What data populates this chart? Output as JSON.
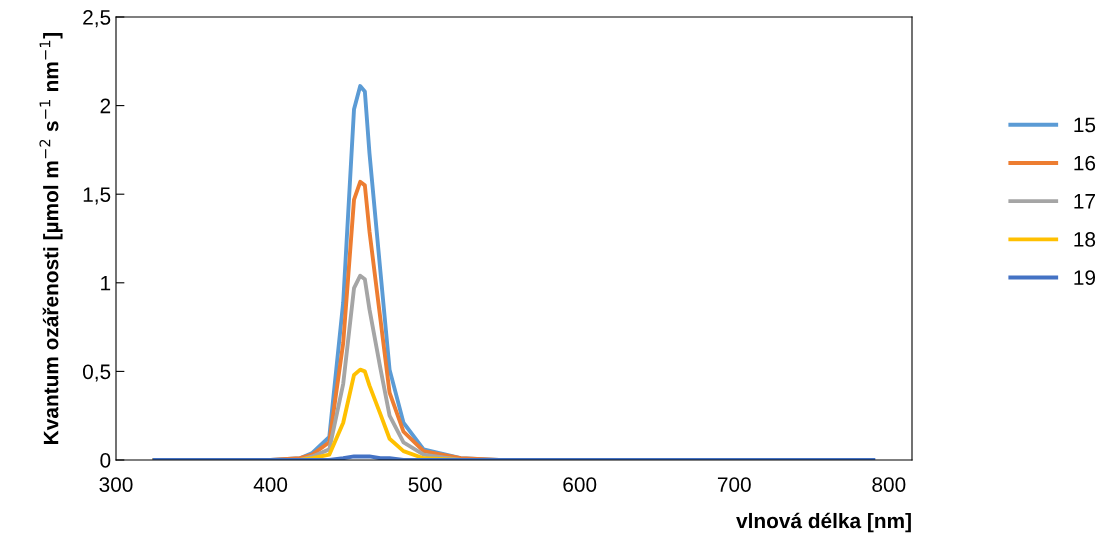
{
  "chart_data": {
    "type": "line",
    "xlabel": "vlnová délka [nm]",
    "ylabel": "Kvantum ozářenosti [µmol m$^{−2}$ s$^{−1}$ nm$^{−1}$]",
    "x": [
      325,
      400,
      419,
      427,
      438,
      447,
      454,
      458,
      461,
      464,
      471,
      477,
      486,
      499,
      523,
      550,
      600,
      700,
      790
    ],
    "series": [
      {
        "name": "15",
        "color": "#5b9bd5",
        "values": [
          0,
          0,
          0.01,
          0.04,
          0.13,
          0.89,
          1.98,
          2.11,
          2.08,
          1.73,
          1.07,
          0.51,
          0.21,
          0.06,
          0.01,
          0,
          null,
          null,
          null
        ]
      },
      {
        "name": "16",
        "color": "#ed7d31",
        "values": [
          0,
          0,
          0.01,
          0.03,
          0.1,
          0.66,
          1.47,
          1.57,
          1.55,
          1.29,
          0.8,
          0.38,
          0.16,
          0.05,
          0.01,
          0,
          null,
          null,
          null
        ]
      },
      {
        "name": "17",
        "color": "#a5a5a5",
        "values": [
          0,
          0,
          0,
          0.02,
          0.06,
          0.43,
          0.97,
          1.04,
          1.02,
          0.85,
          0.52,
          0.25,
          0.1,
          0.03,
          0,
          0,
          null,
          null,
          null
        ]
      },
      {
        "name": "18",
        "color": "#ffc000",
        "values": [
          0,
          0,
          0,
          0.01,
          0.03,
          0.21,
          0.48,
          0.51,
          0.5,
          0.42,
          0.26,
          0.12,
          0.05,
          0.01,
          0,
          0,
          null,
          null,
          null
        ]
      },
      {
        "name": "19",
        "color": "#4472c4",
        "values": [
          0,
          0,
          0,
          0,
          0,
          0.01,
          0.02,
          0.02,
          0.02,
          0.02,
          0.01,
          0.01,
          0,
          0,
          0,
          0,
          0,
          0,
          0
        ]
      }
    ],
    "xlim": [
      300,
      815
    ],
    "xticks": [
      300,
      400,
      500,
      600,
      700,
      800
    ],
    "ylim": [
      0,
      2.5
    ],
    "yticks": [
      0,
      {
        "value": 0.5,
        "label": "0,5"
      },
      1,
      {
        "value": 1.5,
        "label": "1,5"
      },
      2,
      {
        "value": 2.5,
        "label": "2,5"
      }
    ],
    "grid": false,
    "legend": "right",
    "marker": "none",
    "line_style": "solid"
  }
}
